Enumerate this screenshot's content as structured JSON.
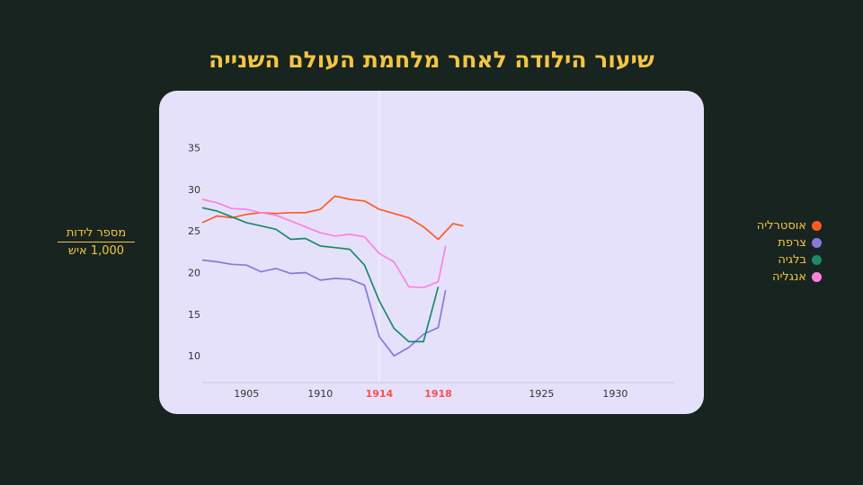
{
  "title": "שיעור הילודה לאחר מלחמת העולם השנייה",
  "chart_data": {
    "type": "line",
    "ylabel_top": "מספר לידות",
    "ylabel_bottom": "1,000 איש",
    "x_ticks": [
      "1905",
      "1910",
      "1914",
      "1918",
      "1925",
      "1930"
    ],
    "highlight_ticks": [
      "1914",
      "1918"
    ],
    "y_ticks": [
      "10",
      "15",
      "20",
      "25",
      "30",
      "35"
    ],
    "xlim": [
      1902,
      1934
    ],
    "ylim": [
      7,
      37
    ],
    "grid": "vertical line at 1914",
    "legend_position": "right",
    "series": [
      {
        "name": "אוסטרליה",
        "color": "#ff5a1f",
        "x": [
          1902,
          1903,
          1904,
          1905,
          1906,
          1907,
          1908,
          1909,
          1910,
          1911,
          1912,
          1913,
          1914,
          1915,
          1916,
          1917,
          1918,
          1919,
          1919.7
        ],
        "y": [
          26.0,
          26.8,
          26.6,
          27.0,
          27.2,
          27.1,
          27.2,
          27.2,
          27.6,
          29.2,
          28.8,
          28.6,
          27.6,
          27.1,
          26.6,
          25.5,
          24.0,
          25.9,
          25.6
        ]
      },
      {
        "name": "צרפת",
        "color": "#8878dd",
        "x": [
          1902,
          1903,
          1904,
          1905,
          1906,
          1907,
          1908,
          1909,
          1910,
          1911,
          1912,
          1913,
          1914,
          1915,
          1916,
          1917,
          1918,
          1918.5
        ],
        "y": [
          21.5,
          21.3,
          21.0,
          20.9,
          20.1,
          20.5,
          19.9,
          20.0,
          19.1,
          19.3,
          19.2,
          18.5,
          12.3,
          10.0,
          11.0,
          12.6,
          13.4,
          17.9
        ]
      },
      {
        "name": "בלגיה",
        "color": "#1a8a6a",
        "x": [
          1902,
          1903,
          1904,
          1905,
          1906,
          1907,
          1908,
          1909,
          1910,
          1911,
          1912,
          1913,
          1914,
          1915,
          1916,
          1917,
          1918
        ],
        "y": [
          27.8,
          27.4,
          26.7,
          26.0,
          25.6,
          25.2,
          24.0,
          24.1,
          23.2,
          23.0,
          22.8,
          20.9,
          16.6,
          13.3,
          11.7,
          11.7,
          18.3
        ]
      },
      {
        "name": "אנגליה",
        "color": "#ff80dd",
        "x": [
          1902,
          1903,
          1904,
          1905,
          1906,
          1907,
          1908,
          1909,
          1910,
          1911,
          1912,
          1913,
          1914,
          1915,
          1916,
          1917,
          1918,
          1918.5
        ],
        "y": [
          28.8,
          28.4,
          27.7,
          27.6,
          27.2,
          26.9,
          26.2,
          25.5,
          24.8,
          24.4,
          24.6,
          24.3,
          22.3,
          21.3,
          18.3,
          18.2,
          18.9,
          23.2
        ]
      }
    ]
  },
  "colors": {
    "background": "#17241f",
    "panel": "#e6e1fb",
    "accent": "#f5c542",
    "highlight_tick": "#ff4d4d",
    "tick": "#333333"
  }
}
